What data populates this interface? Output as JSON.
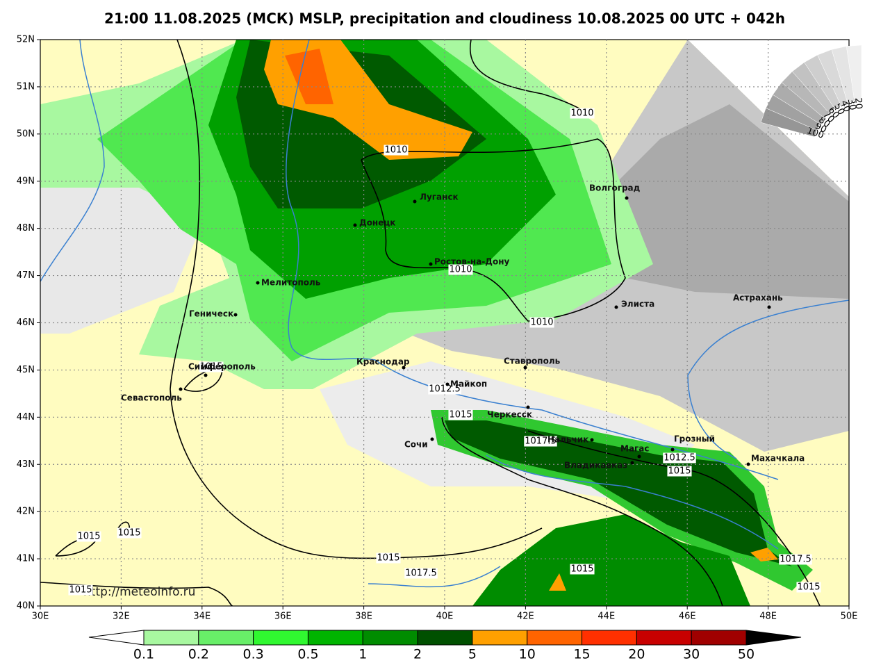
{
  "title": "21:00 11.08.2025 (МСК) MSLP, precipitation and cloudiness 10.08.2025 00 UTC + 042h",
  "map": {
    "lat_labels": [
      "52N",
      "51N",
      "50N",
      "49N",
      "48N",
      "47N",
      "46N",
      "45N",
      "44N",
      "43N",
      "42N",
      "41N",
      "40N"
    ],
    "lon_labels": [
      "30E",
      "32E",
      "34E",
      "36E",
      "38E",
      "40E",
      "42E",
      "44E",
      "46E",
      "48E",
      "50E"
    ],
    "cities": [
      "Волгоград",
      "Луганск",
      "Донецк",
      "Ростов-на-Дону",
      "Мелитополь",
      "Геническ",
      "Элиста",
      "Астрахань",
      "Симферополь",
      "Севастополь",
      "Краснодар",
      "Ставрополь",
      "Майкоп",
      "Черкесск",
      "Сочи",
      "Нальчик",
      "Магас",
      "Грозный",
      "Владикавказ",
      "Махачкала"
    ],
    "isobar_labels": [
      "1010",
      "1010",
      "1010",
      "1010",
      "1012.5",
      "1015",
      "1017.5",
      "1012.5",
      "1015",
      "1015",
      "1015",
      "1015",
      "1017.5",
      "1015",
      "1017.5",
      "1015",
      "1015",
      "1015"
    ],
    "url": "http://meteoinfo.ru"
  },
  "colorbar": {
    "labels": [
      "0.1",
      "0.2",
      "0.3",
      "0.5",
      "1",
      "2",
      "5",
      "10",
      "15",
      "20",
      "30",
      "50"
    ]
  },
  "cloud_scale": {
    "labels": [
      "100",
      "90",
      "80",
      "70",
      "60",
      "50",
      "40",
      "30",
      "20"
    ]
  }
}
